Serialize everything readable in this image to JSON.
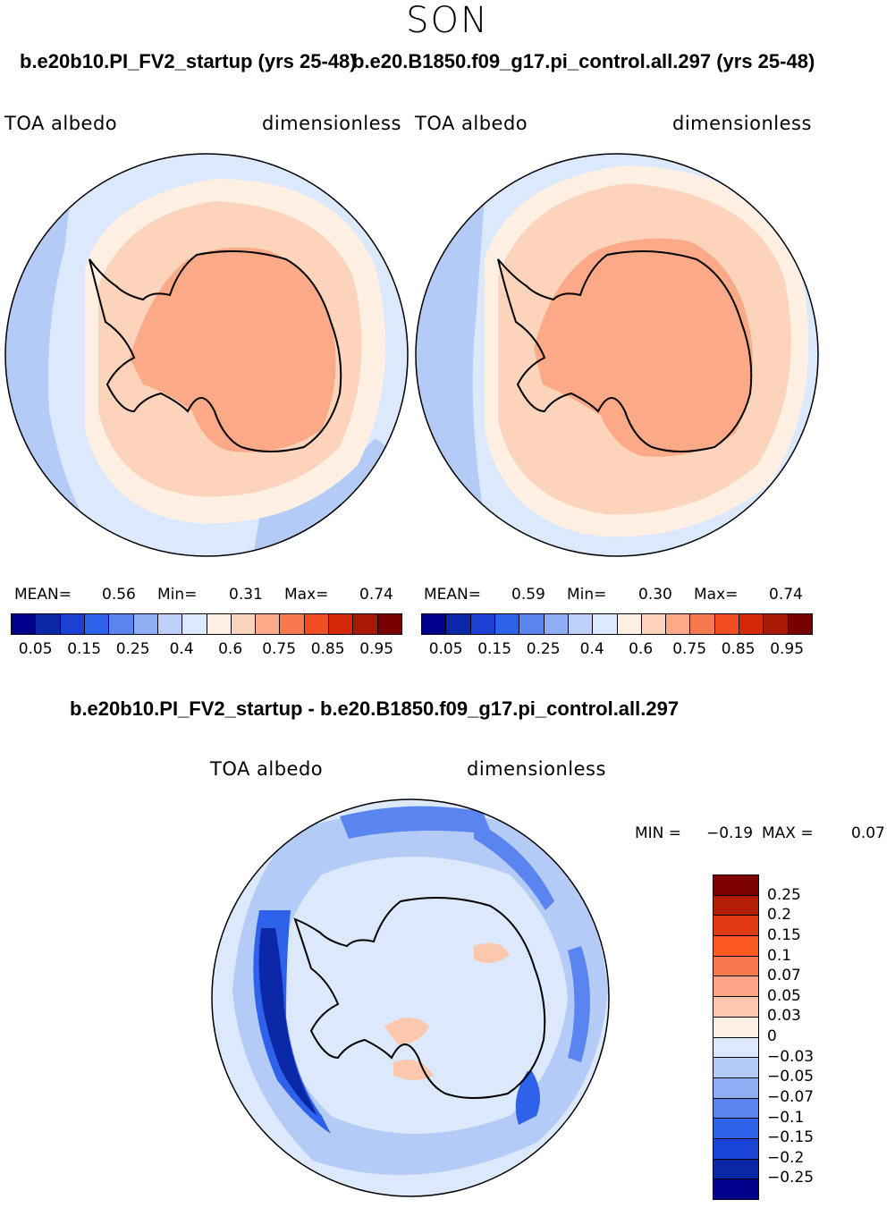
{
  "header": {
    "season": "SON",
    "left_run_title": "b.e20b10.PI_FV2_startup (yrs 25-48)",
    "right_run_title": "b.e20.B1850.f09_g17.pi_control.all.297 (yrs 25-48)",
    "diff_title": "b.e20b10.PI_FV2_startup - b.e20.B1850.f09_g17.pi_control.all.297"
  },
  "panels": {
    "left": {
      "variable": "TOA  albedo",
      "units": "dimensionless",
      "mean_label": "MEAN=",
      "mean": "0.56",
      "min_label": "Min=",
      "min": "0.31",
      "max_label": "Max=",
      "max": "0.74"
    },
    "right": {
      "variable": "TOA  albedo",
      "units": "dimensionless",
      "mean_label": "MEAN=",
      "mean": "0.59",
      "min_label": "Min=",
      "min": "0.30",
      "max_label": "Max=",
      "max": "0.74"
    },
    "diff": {
      "variable": "TOA  albedo",
      "units": "dimensionless",
      "min_label": "MIN =",
      "min": "−0.19",
      "max_label": "MAX =",
      "max": "0.07"
    }
  },
  "colorbar_main": {
    "tick_labels": [
      "0.05",
      "0.15",
      "0.25",
      "0.4",
      "0.6",
      "0.75",
      "0.85",
      "0.95"
    ],
    "colors": [
      "#00008c",
      "#0a27a8",
      "#1a3fd2",
      "#2e62ea",
      "#5a84ef",
      "#8fadf5",
      "#bdd0fa",
      "#dce8fb",
      "#fff0e3",
      "#fcd3bb",
      "#fba986",
      "#f8794d",
      "#f04d22",
      "#d4280a",
      "#a81805",
      "#780000"
    ]
  },
  "colorbar_diff": {
    "tick_labels": [
      "0.25",
      "0.2",
      "0.15",
      "0.1",
      "0.07",
      "0.05",
      "0.03",
      "0",
      "−0.03",
      "−0.05",
      "−0.07",
      "−0.1",
      "−0.15",
      "−0.2",
      "−0.25"
    ],
    "colors": [
      "#7d0000",
      "#b41e06",
      "#e23a12",
      "#fa5a20",
      "#f8794d",
      "#fba384",
      "#fcc8ad",
      "#fff0e3",
      "#dce8fb",
      "#b4cbf8",
      "#8faef4",
      "#5a84ef",
      "#2e62ea",
      "#1a44d8",
      "#0a27a8",
      "#00008c"
    ]
  }
}
